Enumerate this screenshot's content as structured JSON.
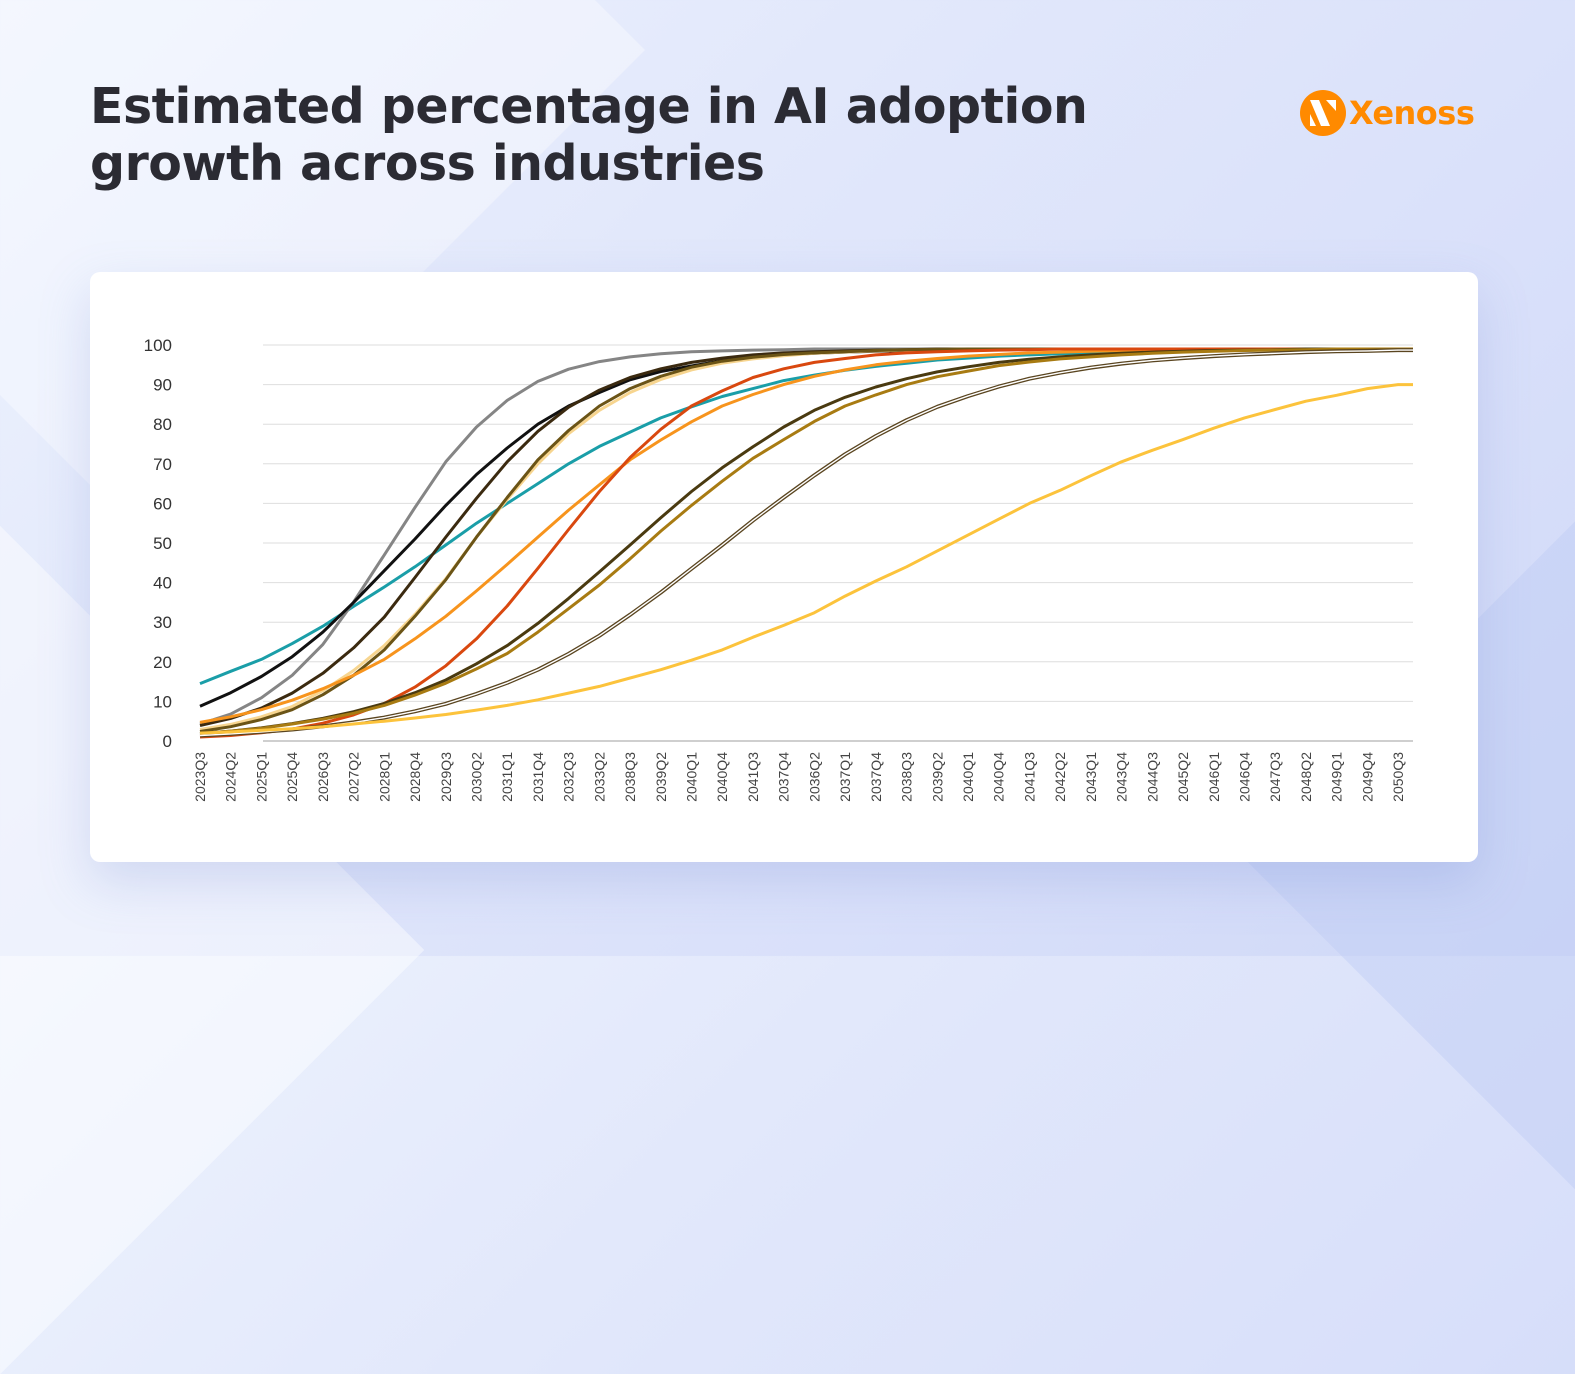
{
  "title": "Estimated percentage in AI adoption growth across industries",
  "title_lines": [
    "Estimated percentage in AI adoption",
    "growth across industries"
  ],
  "logo": {
    "text": "Xenoss",
    "color": "#ff8a00"
  },
  "chart_data": {
    "type": "line",
    "title": "",
    "xlabel": "",
    "ylabel": "",
    "ylim": [
      0,
      100
    ],
    "yticks": [
      0,
      10,
      20,
      30,
      40,
      50,
      60,
      70,
      80,
      90,
      100
    ],
    "grid": "horizontal",
    "legend": "none",
    "categories": [
      "2023Q3",
      "2024Q2",
      "2025Q1",
      "2025Q4",
      "2026Q3",
      "2027Q2",
      "2028Q1",
      "2028Q4",
      "2029Q3",
      "2030Q2",
      "2031Q1",
      "2031Q4",
      "2032Q3",
      "2033Q2",
      "2038Q3",
      "2039Q2",
      "2040Q1",
      "2040Q4",
      "2041Q3",
      "2037Q4",
      "2036Q2",
      "2037Q1",
      "2037Q4",
      "2038Q3",
      "2039Q2",
      "2040Q1",
      "2040Q4",
      "2041Q3",
      "2042Q2",
      "2043Q1",
      "2043Q4",
      "2044Q3",
      "2045Q2",
      "2046Q1",
      "2046Q4",
      "2047Q3",
      "2048Q2",
      "2049Q1",
      "2049Q4",
      "2050Q3"
    ],
    "series": [
      {
        "color": "#1a9ea8",
        "style": "solid",
        "values": [
          14.5,
          17.6,
          20.6,
          24.6,
          29,
          34,
          38.9,
          44,
          49.5,
          55,
          60,
          65,
          70,
          74.4,
          78,
          81.6,
          84.4,
          87,
          89,
          91,
          92.4,
          93.6,
          94.6,
          95.4,
          96.2,
          96.7,
          97.2,
          97.5,
          97.8,
          98,
          98.2,
          98.3,
          98.5,
          98.6,
          98.7,
          98.8,
          98.8,
          98.9,
          98.9,
          99
        ]
      },
      {
        "color": "#858585",
        "style": "solid",
        "values": [
          4.3,
          6.8,
          10.9,
          16.6,
          24.4,
          35.1,
          47,
          59,
          70.5,
          79.3,
          86,
          90.8,
          93.9,
          95.8,
          97,
          97.8,
          98.3,
          98.5,
          98.7,
          98.8,
          99,
          99,
          99,
          99,
          99,
          99,
          99,
          99,
          99,
          99,
          99,
          99,
          99,
          99,
          99,
          99,
          99,
          99,
          99,
          99
        ]
      },
      {
        "color": "#111111",
        "style": "solid",
        "values": [
          8.8,
          12.2,
          16.3,
          21.3,
          27.5,
          35,
          43,
          51,
          59.5,
          67.3,
          74,
          80,
          84.6,
          88,
          91.2,
          93.3,
          94.7,
          96,
          96.8,
          97.5,
          97.9,
          98.2,
          98.4,
          98.6,
          98.7,
          98.8,
          98.9,
          99,
          99,
          99,
          99,
          99,
          99,
          99,
          99,
          99,
          99,
          99,
          99,
          99
        ]
      },
      {
        "color": "#3b2a10",
        "style": "solid",
        "values": [
          3.9,
          5.7,
          8.3,
          12.1,
          17.1,
          23.5,
          31.3,
          41.3,
          51.5,
          61.3,
          70.5,
          78.2,
          84.3,
          88.6,
          91.8,
          94,
          95.6,
          96.7,
          97.5,
          98,
          98.3,
          98.5,
          98.7,
          98.8,
          99,
          99,
          99,
          99,
          99,
          99,
          99,
          99,
          99,
          99,
          99,
          99,
          99,
          99,
          99,
          99
        ]
      },
      {
        "color": "#f7d58f",
        "style": "solid",
        "values": [
          2.9,
          4.2,
          6.1,
          8.7,
          12.7,
          17.8,
          24.1,
          32,
          41,
          51.5,
          61,
          70,
          77.6,
          83.5,
          88,
          91.3,
          93.7,
          95.4,
          96.5,
          97.3,
          97.9,
          98.2,
          98.5,
          98.7,
          98.8,
          99,
          99,
          99,
          99,
          99,
          99,
          99,
          99,
          99,
          99,
          99,
          99,
          99,
          99,
          99
        ]
      },
      {
        "color": "#6b5416",
        "style": "solid",
        "values": [
          2.4,
          3.6,
          5.4,
          7.9,
          11.7,
          16.6,
          23,
          31.5,
          40.7,
          51.5,
          61.5,
          71,
          78.4,
          84.6,
          89,
          92.1,
          94.4,
          95.9,
          96.9,
          97.6,
          98,
          98.3,
          98.6,
          98.8,
          98.9,
          99,
          99,
          99,
          99,
          99,
          99,
          99,
          99,
          99,
          99,
          99,
          99,
          99,
          99,
          99
        ]
      },
      {
        "color": "#f7941d",
        "style": "solid",
        "values": [
          4.7,
          6.1,
          7.9,
          10.3,
          13.2,
          16.6,
          20.6,
          25.8,
          31.5,
          37.9,
          44.6,
          51.5,
          58.3,
          64.7,
          71,
          76,
          80.6,
          84.6,
          87.5,
          90,
          92.1,
          93.7,
          95,
          95.9,
          96.6,
          97.2,
          97.6,
          98,
          98.2,
          98.4,
          98.6,
          98.7,
          98.8,
          98.9,
          99,
          99,
          99,
          99,
          99,
          99
        ]
      },
      {
        "color": "#d9480f",
        "style": "solid",
        "values": [
          1,
          1.4,
          2.1,
          3,
          4.5,
          6.6,
          9.5,
          13.6,
          19,
          25.8,
          34.1,
          43.6,
          53.4,
          63,
          71.6,
          78.7,
          84.6,
          88.4,
          91.8,
          94,
          95.6,
          96.6,
          97.5,
          98,
          98.3,
          98.5,
          98.7,
          98.8,
          99,
          99,
          99,
          99,
          99,
          99,
          99,
          99,
          99,
          99,
          99,
          99
        ]
      },
      {
        "color": "#4a3a10",
        "style": "solid",
        "values": [
          1.9,
          2.5,
          3.3,
          4.4,
          5.7,
          7.4,
          9.5,
          12.2,
          15.4,
          19.5,
          24.1,
          29.7,
          36,
          42.7,
          49.5,
          56.4,
          63,
          69,
          74.3,
          79.3,
          83.5,
          86.8,
          89.4,
          91.5,
          93.2,
          94.5,
          95.6,
          96.4,
          97,
          97.5,
          97.9,
          98.2,
          98.4,
          98.6,
          98.7,
          98.8,
          99,
          99,
          99,
          99
        ]
      },
      {
        "color": "#a87b12",
        "style": "solid",
        "values": [
          1.9,
          2.5,
          3.2,
          4.3,
          5.5,
          7,
          9,
          11.6,
          14.6,
          18.2,
          22.1,
          27.5,
          33.4,
          39.4,
          46,
          53,
          59.5,
          65.6,
          71.4,
          76.1,
          80.7,
          84.6,
          87.4,
          90,
          92,
          93.4,
          94.8,
          95.7,
          96.5,
          97,
          97.5,
          97.9,
          98.2,
          98.4,
          98.6,
          98.7,
          98.8,
          99,
          99,
          99
        ]
      },
      {
        "color": "#5a4520",
        "style": "double",
        "values": [
          1.4,
          1.8,
          2.3,
          2.9,
          3.7,
          4.7,
          5.9,
          7.5,
          9.4,
          11.9,
          14.7,
          18,
          22,
          26.6,
          31.9,
          37.5,
          43.5,
          49.5,
          55.7,
          61.5,
          67.1,
          72.4,
          77,
          81,
          84.4,
          87.1,
          89.5,
          91.5,
          93,
          94.3,
          95.3,
          96.1,
          96.7,
          97.2,
          97.6,
          97.9,
          98.2,
          98.4,
          98.5,
          98.7
        ]
      },
      {
        "color": "#fcc33c",
        "style": "solid",
        "values": [
          2,
          2.3,
          2.7,
          3.1,
          3.6,
          4.3,
          5,
          5.8,
          6.7,
          7.8,
          9,
          10.4,
          12.1,
          13.8,
          15.9,
          18,
          20.4,
          23,
          26.2,
          29.2,
          32.4,
          36.6,
          40.4,
          44,
          48,
          52,
          56,
          60,
          63.3,
          67,
          70.5,
          73.4,
          76.1,
          79,
          81.6,
          83.7,
          85.8,
          87.3,
          89,
          90
        ]
      }
    ]
  }
}
